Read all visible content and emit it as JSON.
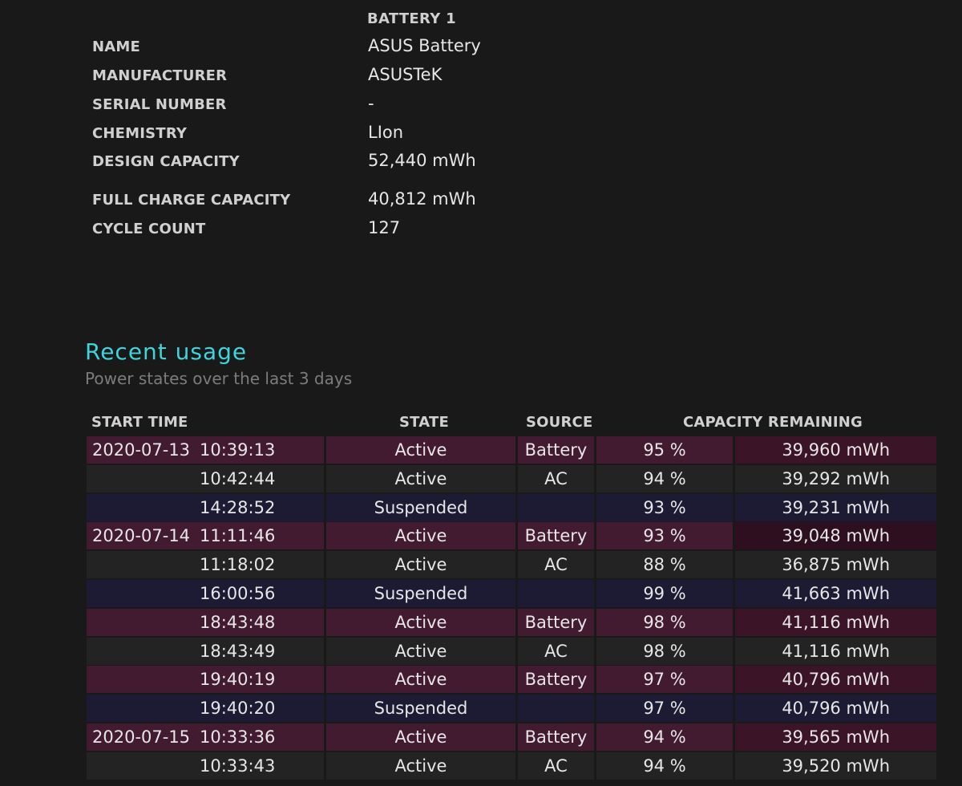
{
  "battery": {
    "header": "BATTERY 1",
    "rows": [
      {
        "label": "NAME",
        "value": "ASUS Battery"
      },
      {
        "label": "MANUFACTURER",
        "value": "ASUSTeK"
      },
      {
        "label": "SERIAL NUMBER",
        "value": "-"
      },
      {
        "label": "CHEMISTRY",
        "value": "LIon"
      },
      {
        "label": "DESIGN CAPACITY",
        "value": "52,440 mWh"
      },
      {
        "label": "FULL CHARGE CAPACITY",
        "value": "40,812 mWh"
      },
      {
        "label": "CYCLE COUNT",
        "value": "127"
      }
    ]
  },
  "recent_usage": {
    "title": "Recent usage",
    "subtitle": "Power states over the last 3 days",
    "columns": {
      "start_time": "START TIME",
      "state": "STATE",
      "source": "SOURCE",
      "capacity": "CAPACITY REMAINING"
    },
    "rows": [
      {
        "date": "2020-07-13",
        "time": "10:39:13",
        "state": "Active",
        "source": "Battery",
        "percent": "95 %",
        "mwh": "39,960 mWh"
      },
      {
        "date": "",
        "time": "10:42:44",
        "state": "Active",
        "source": "AC",
        "percent": "94 %",
        "mwh": "39,292 mWh"
      },
      {
        "date": "",
        "time": "14:28:52",
        "state": "Suspended",
        "source": "",
        "percent": "93 %",
        "mwh": "39,231 mWh"
      },
      {
        "date": "2020-07-14",
        "time": "11:11:46",
        "state": "Active",
        "source": "Battery",
        "percent": "93 %",
        "mwh": "39,048 mWh"
      },
      {
        "date": "",
        "time": "11:18:02",
        "state": "Active",
        "source": "AC",
        "percent": "88 %",
        "mwh": "36,875 mWh"
      },
      {
        "date": "",
        "time": "16:00:56",
        "state": "Suspended",
        "source": "",
        "percent": "99 %",
        "mwh": "41,663 mWh"
      },
      {
        "date": "",
        "time": "18:43:48",
        "state": "Active",
        "source": "Battery",
        "percent": "98 %",
        "mwh": "41,116 mWh"
      },
      {
        "date": "",
        "time": "18:43:49",
        "state": "Active",
        "source": "AC",
        "percent": "98 %",
        "mwh": "41,116 mWh"
      },
      {
        "date": "",
        "time": "19:40:19",
        "state": "Active",
        "source": "Battery",
        "percent": "97 %",
        "mwh": "40,796 mWh"
      },
      {
        "date": "",
        "time": "19:40:20",
        "state": "Suspended",
        "source": "",
        "percent": "97 %",
        "mwh": "40,796 mWh"
      },
      {
        "date": "2020-07-15",
        "time": "10:33:36",
        "state": "Active",
        "source": "Battery",
        "percent": "94 %",
        "mwh": "39,565 mWh"
      },
      {
        "date": "",
        "time": "10:33:43",
        "state": "Active",
        "source": "AC",
        "percent": "94 %",
        "mwh": "39,520 mWh"
      }
    ]
  }
}
